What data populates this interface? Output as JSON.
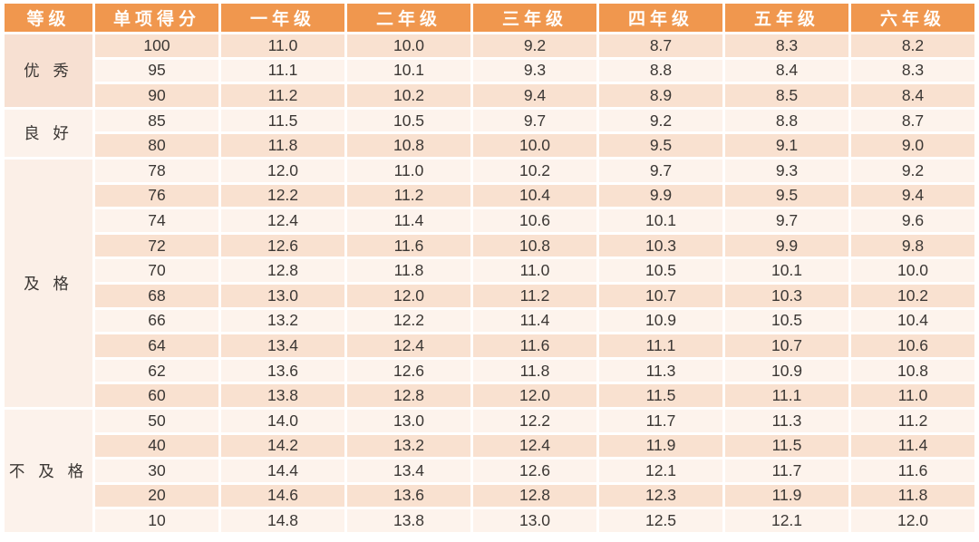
{
  "colors": {
    "header_bg": "#F0974E",
    "header_text": "#FFFDFA",
    "text_dark": "#3B3734",
    "stripe_a": "#F9E1D0",
    "stripe_b": "#FDF3EC",
    "page_bg": "#FFFFFF"
  },
  "table": {
    "columns": [
      "等级",
      "单项得分",
      "一年级",
      "二年级",
      "三年级",
      "四年级",
      "五年级",
      "六年级"
    ],
    "groups": [
      {
        "label": "优 秀",
        "bg": "#F7E0D2",
        "rows": [
          {
            "score": "100",
            "values": [
              "11.0",
              "10.0",
              "9.2",
              "8.7",
              "8.3",
              "8.2"
            ]
          },
          {
            "score": "95",
            "values": [
              "11.1",
              "10.1",
              "9.3",
              "8.8",
              "8.4",
              "8.3"
            ]
          },
          {
            "score": "90",
            "values": [
              "11.2",
              "10.2",
              "9.4",
              "8.9",
              "8.5",
              "8.4"
            ]
          }
        ]
      },
      {
        "label": "良 好",
        "bg": "#FCF2EB",
        "rows": [
          {
            "score": "85",
            "values": [
              "11.5",
              "10.5",
              "9.7",
              "9.2",
              "8.8",
              "8.7"
            ]
          },
          {
            "score": "80",
            "values": [
              "11.8",
              "10.8",
              "10.0",
              "9.5",
              "9.1",
              "9.0"
            ]
          }
        ]
      },
      {
        "label": "及 格",
        "bg": "#FBEFE7",
        "rows": [
          {
            "score": "78",
            "values": [
              "12.0",
              "11.0",
              "10.2",
              "9.7",
              "9.3",
              "9.2"
            ]
          },
          {
            "score": "76",
            "values": [
              "12.2",
              "11.2",
              "10.4",
              "9.9",
              "9.5",
              "9.4"
            ]
          },
          {
            "score": "74",
            "values": [
              "12.4",
              "11.4",
              "10.6",
              "10.1",
              "9.7",
              "9.6"
            ]
          },
          {
            "score": "72",
            "values": [
              "12.6",
              "11.6",
              "10.8",
              "10.3",
              "9.9",
              "9.8"
            ]
          },
          {
            "score": "70",
            "values": [
              "12.8",
              "11.8",
              "11.0",
              "10.5",
              "10.1",
              "10.0"
            ]
          },
          {
            "score": "68",
            "values": [
              "13.0",
              "12.0",
              "11.2",
              "10.7",
              "10.3",
              "10.2"
            ]
          },
          {
            "score": "66",
            "values": [
              "13.2",
              "12.2",
              "11.4",
              "10.9",
              "10.5",
              "10.4"
            ]
          },
          {
            "score": "64",
            "values": [
              "13.4",
              "12.4",
              "11.6",
              "11.1",
              "10.7",
              "10.6"
            ]
          },
          {
            "score": "62",
            "values": [
              "13.6",
              "12.6",
              "11.8",
              "11.3",
              "10.9",
              "10.8"
            ]
          },
          {
            "score": "60",
            "values": [
              "13.8",
              "12.8",
              "12.0",
              "11.5",
              "11.1",
              "11.0"
            ]
          }
        ]
      },
      {
        "label": "不 及 格",
        "bg": "#FCF2EB",
        "rows": [
          {
            "score": "50",
            "values": [
              "14.0",
              "13.0",
              "12.2",
              "11.7",
              "11.3",
              "11.2"
            ]
          },
          {
            "score": "40",
            "values": [
              "14.2",
              "13.2",
              "12.4",
              "11.9",
              "11.5",
              "11.4"
            ]
          },
          {
            "score": "30",
            "values": [
              "14.4",
              "13.4",
              "12.6",
              "12.1",
              "11.7",
              "11.6"
            ]
          },
          {
            "score": "20",
            "values": [
              "14.6",
              "13.6",
              "12.8",
              "12.3",
              "11.9",
              "11.8"
            ]
          },
          {
            "score": "10",
            "values": [
              "14.8",
              "13.8",
              "13.0",
              "12.5",
              "12.1",
              "12.0"
            ]
          }
        ]
      }
    ]
  }
}
